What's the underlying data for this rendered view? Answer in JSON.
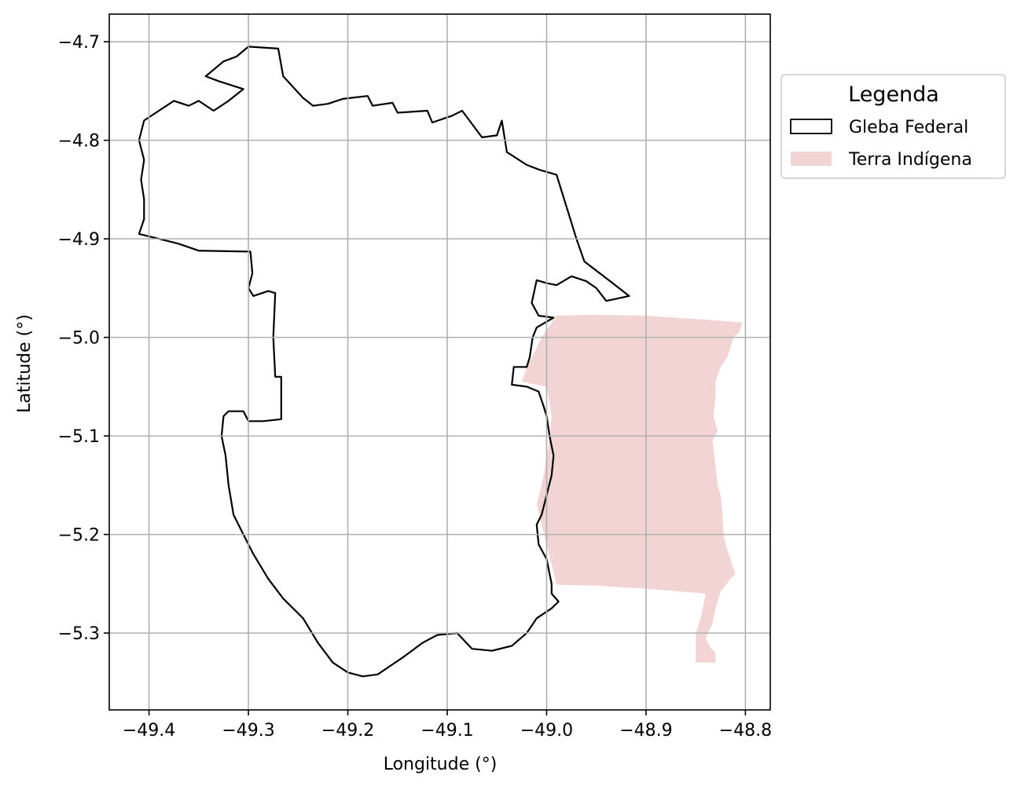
{
  "chart_data": {
    "type": "map",
    "xlabel": "Longitude (°)",
    "ylabel": "Latitude (°)",
    "xlim": [
      -49.44,
      -48.775
    ],
    "ylim": [
      -5.378,
      -4.672
    ],
    "grid": true,
    "x_ticks": [
      -49.4,
      -49.3,
      -49.2,
      -49.1,
      -49.0,
      -48.9,
      -48.8
    ],
    "x_tick_labels": [
      "−49.4",
      "−49.3",
      "−49.2",
      "−49.1",
      "−49.0",
      "−48.9",
      "−48.8"
    ],
    "y_ticks": [
      -4.7,
      -4.8,
      -4.9,
      -5.0,
      -5.1,
      -5.2,
      -5.3
    ],
    "y_tick_labels": [
      "−4.7",
      "−4.8",
      "−4.9",
      "−5.0",
      "−5.1",
      "−5.2",
      "−5.3"
    ],
    "legend": {
      "title": "Legenda",
      "placement": "upper right, outside axes",
      "entries": [
        "Gleba Federal",
        "Terra Indígena"
      ]
    },
    "layers": [
      {
        "name": "Terra Indígena",
        "fill": "#f2d4d4",
        "stroke": "none",
        "coordinates": [
          [
            -48.99,
            -4.978
          ],
          [
            -48.95,
            -4.977
          ],
          [
            -48.9,
            -4.978
          ],
          [
            -48.84,
            -4.982
          ],
          [
            -48.803,
            -4.985
          ],
          [
            -48.806,
            -4.995
          ],
          [
            -48.812,
            -5.0
          ],
          [
            -48.818,
            -5.02
          ],
          [
            -48.825,
            -5.03
          ],
          [
            -48.83,
            -5.045
          ],
          [
            -48.83,
            -5.06
          ],
          [
            -48.832,
            -5.08
          ],
          [
            -48.828,
            -5.095
          ],
          [
            -48.833,
            -5.105
          ],
          [
            -48.83,
            -5.13
          ],
          [
            -48.828,
            -5.15
          ],
          [
            -48.825,
            -5.16
          ],
          [
            -48.823,
            -5.18
          ],
          [
            -48.822,
            -5.2
          ],
          [
            -48.82,
            -5.21
          ],
          [
            -48.815,
            -5.225
          ],
          [
            -48.81,
            -5.24
          ],
          [
            -48.815,
            -5.245
          ],
          [
            -48.825,
            -5.258
          ],
          [
            -48.83,
            -5.275
          ],
          [
            -48.833,
            -5.29
          ],
          [
            -48.84,
            -5.305
          ],
          [
            -48.835,
            -5.315
          ],
          [
            -48.83,
            -5.32
          ],
          [
            -48.83,
            -5.33
          ],
          [
            -48.85,
            -5.33
          ],
          [
            -48.85,
            -5.3
          ],
          [
            -48.845,
            -5.285
          ],
          [
            -48.84,
            -5.26
          ],
          [
            -48.9,
            -5.255
          ],
          [
            -48.95,
            -5.252
          ],
          [
            -48.99,
            -5.251
          ],
          [
            -48.995,
            -5.23
          ],
          [
            -49.0,
            -5.21
          ],
          [
            -49.005,
            -5.19
          ],
          [
            -49.01,
            -5.17
          ],
          [
            -49.003,
            -5.14
          ],
          [
            -48.998,
            -5.11
          ],
          [
            -48.995,
            -5.08
          ],
          [
            -49.0,
            -5.05
          ],
          [
            -49.025,
            -5.045
          ],
          [
            -49.02,
            -5.03
          ],
          [
            -49.012,
            -5.015
          ],
          [
            -49.005,
            -5.0
          ],
          [
            -48.995,
            -4.985
          ]
        ]
      },
      {
        "name": "Gleba Federal",
        "fill": "none",
        "stroke": "#000000",
        "coordinates": [
          [
            -49.3,
            -4.705
          ],
          [
            -49.27,
            -4.707
          ],
          [
            -49.265,
            -4.735
          ],
          [
            -49.245,
            -4.757
          ],
          [
            -49.235,
            -4.765
          ],
          [
            -49.22,
            -4.763
          ],
          [
            -49.205,
            -4.758
          ],
          [
            -49.18,
            -4.755
          ],
          [
            -49.175,
            -4.765
          ],
          [
            -49.155,
            -4.762
          ],
          [
            -49.15,
            -4.772
          ],
          [
            -49.12,
            -4.77
          ],
          [
            -49.115,
            -4.782
          ],
          [
            -49.095,
            -4.775
          ],
          [
            -49.085,
            -4.77
          ],
          [
            -49.065,
            -4.797
          ],
          [
            -49.05,
            -4.795
          ],
          [
            -49.045,
            -4.78
          ],
          [
            -49.04,
            -4.812
          ],
          [
            -49.02,
            -4.825
          ],
          [
            -49.007,
            -4.83
          ],
          [
            -48.99,
            -4.835
          ],
          [
            -48.97,
            -4.9
          ],
          [
            -48.962,
            -4.923
          ],
          [
            -48.94,
            -4.94
          ],
          [
            -48.917,
            -4.958
          ],
          [
            -48.94,
            -4.963
          ],
          [
            -48.95,
            -4.95
          ],
          [
            -48.96,
            -4.943
          ],
          [
            -48.975,
            -4.938
          ],
          [
            -48.99,
            -4.947
          ],
          [
            -49.0,
            -4.945
          ],
          [
            -49.01,
            -4.942
          ],
          [
            -49.015,
            -4.965
          ],
          [
            -49.008,
            -4.978
          ],
          [
            -48.993,
            -4.98
          ],
          [
            -49.01,
            -4.99
          ],
          [
            -49.014,
            -5.0
          ],
          [
            -49.017,
            -5.02
          ],
          [
            -49.02,
            -5.03
          ],
          [
            -49.033,
            -5.03
          ],
          [
            -49.035,
            -5.048
          ],
          [
            -49.02,
            -5.05
          ],
          [
            -49.008,
            -5.055
          ],
          [
            -49.003,
            -5.07
          ],
          [
            -49.0,
            -5.08
          ],
          [
            -48.997,
            -5.1
          ],
          [
            -48.993,
            -5.12
          ],
          [
            -48.995,
            -5.14
          ],
          [
            -49.0,
            -5.16
          ],
          [
            -49.005,
            -5.18
          ],
          [
            -49.01,
            -5.19
          ],
          [
            -49.008,
            -5.21
          ],
          [
            -49.0,
            -5.225
          ],
          [
            -48.997,
            -5.24
          ],
          [
            -48.995,
            -5.25
          ],
          [
            -48.995,
            -5.26
          ],
          [
            -48.988,
            -5.268
          ],
          [
            -48.995,
            -5.275
          ],
          [
            -49.01,
            -5.285
          ],
          [
            -49.02,
            -5.3
          ],
          [
            -49.035,
            -5.313
          ],
          [
            -49.055,
            -5.318
          ],
          [
            -49.075,
            -5.316
          ],
          [
            -49.09,
            -5.3
          ],
          [
            -49.11,
            -5.302
          ],
          [
            -49.125,
            -5.31
          ],
          [
            -49.145,
            -5.325
          ],
          [
            -49.17,
            -5.342
          ],
          [
            -49.185,
            -5.344
          ],
          [
            -49.2,
            -5.34
          ],
          [
            -49.215,
            -5.33
          ],
          [
            -49.23,
            -5.31
          ],
          [
            -49.245,
            -5.285
          ],
          [
            -49.265,
            -5.265
          ],
          [
            -49.28,
            -5.245
          ],
          [
            -49.295,
            -5.22
          ],
          [
            -49.305,
            -5.2
          ],
          [
            -49.315,
            -5.18
          ],
          [
            -49.32,
            -5.15
          ],
          [
            -49.323,
            -5.12
          ],
          [
            -49.327,
            -5.1
          ],
          [
            -49.325,
            -5.08
          ],
          [
            -49.32,
            -5.075
          ],
          [
            -49.305,
            -5.075
          ],
          [
            -49.3,
            -5.085
          ],
          [
            -49.285,
            -5.085
          ],
          [
            -49.267,
            -5.083
          ],
          [
            -49.267,
            -5.04
          ],
          [
            -49.273,
            -5.04
          ],
          [
            -49.275,
            -5.0
          ],
          [
            -49.273,
            -4.955
          ],
          [
            -49.28,
            -4.953
          ],
          [
            -49.295,
            -4.958
          ],
          [
            -49.3,
            -4.95
          ],
          [
            -49.296,
            -4.935
          ],
          [
            -49.298,
            -4.913
          ],
          [
            -49.35,
            -4.912
          ],
          [
            -49.37,
            -4.905
          ],
          [
            -49.39,
            -4.9
          ],
          [
            -49.41,
            -4.895
          ],
          [
            -49.405,
            -4.88
          ],
          [
            -49.405,
            -4.86
          ],
          [
            -49.408,
            -4.84
          ],
          [
            -49.405,
            -4.82
          ],
          [
            -49.41,
            -4.8
          ],
          [
            -49.405,
            -4.78
          ],
          [
            -49.39,
            -4.77
          ],
          [
            -49.375,
            -4.76
          ],
          [
            -49.36,
            -4.765
          ],
          [
            -49.35,
            -4.76
          ],
          [
            -49.335,
            -4.77
          ],
          [
            -49.32,
            -4.76
          ],
          [
            -49.305,
            -4.748
          ],
          [
            -49.33,
            -4.74
          ],
          [
            -49.343,
            -4.735
          ],
          [
            -49.325,
            -4.72
          ],
          [
            -49.312,
            -4.715
          ]
        ]
      }
    ]
  }
}
